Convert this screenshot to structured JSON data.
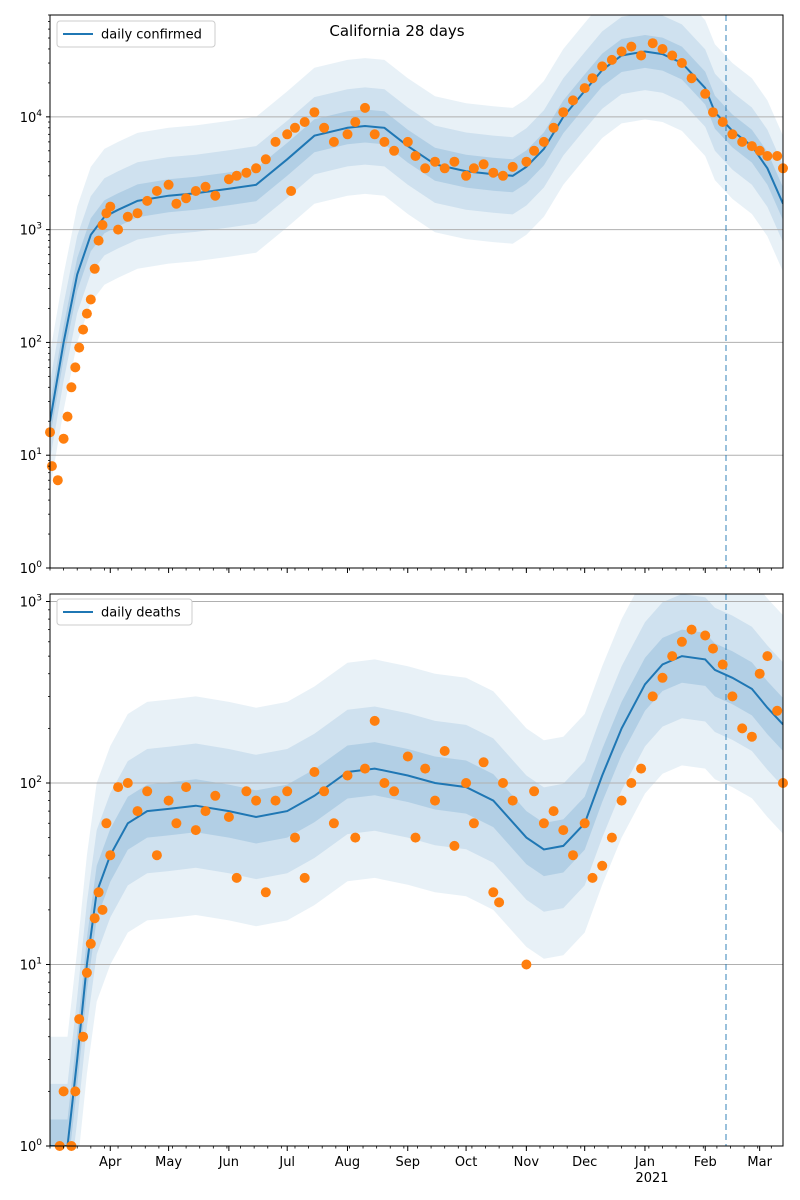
{
  "figure": {
    "title": "California 28 days"
  },
  "colors": {
    "model_line": "#1f77b4",
    "band": "#1f77b4",
    "observed": "#ff7f0e",
    "grid": "#b0b0b0",
    "vline": "#1f77b4"
  },
  "chart_data": [
    {
      "type": "line",
      "title": "California 28 days",
      "legend": {
        "label": "daily confirmed",
        "placement": "top-left"
      },
      "yscale": "log",
      "ylim": [
        1,
        80000
      ],
      "y_ticks": [
        1,
        10,
        100,
        1000,
        10000
      ],
      "y_tick_labels": [
        [
          "10",
          "0"
        ],
        [
          "10",
          "1"
        ],
        [
          "10",
          "2"
        ],
        [
          "10",
          "3"
        ],
        [
          "10",
          "4"
        ]
      ],
      "xlim": [
        "2020-03-01",
        "2021-03-13"
      ],
      "grid": "horizontal",
      "vertical_marker_date": "2021-02-06",
      "model": {
        "x": [
          "2020-03-01",
          "2020-03-08",
          "2020-03-15",
          "2020-03-22",
          "2020-03-29",
          "2020-04-05",
          "2020-04-15",
          "2020-05-01",
          "2020-05-15",
          "2020-06-01",
          "2020-06-15",
          "2020-07-01",
          "2020-07-15",
          "2020-08-01",
          "2020-08-10",
          "2020-08-20",
          "2020-09-01",
          "2020-09-15",
          "2020-10-01",
          "2020-10-15",
          "2020-10-25",
          "2020-11-01",
          "2020-11-10",
          "2020-11-20",
          "2020-12-01",
          "2020-12-10",
          "2020-12-20",
          "2021-01-01",
          "2021-01-10",
          "2021-01-20",
          "2021-02-01",
          "2021-02-06",
          "2021-02-15",
          "2021-02-25",
          "2021-03-05",
          "2021-03-13"
        ],
        "y": [
          20,
          100,
          400,
          900,
          1300,
          1500,
          1800,
          2000,
          2100,
          2300,
          2500,
          4200,
          6800,
          8000,
          8300,
          8000,
          5500,
          3800,
          3300,
          3100,
          3000,
          3600,
          5200,
          10000,
          17000,
          26000,
          35000,
          38000,
          36000,
          30000,
          18000,
          11000,
          7500,
          5500,
          3500,
          1700
        ]
      },
      "observed": {
        "x": [
          "2020-03-01",
          "2020-03-02",
          "2020-03-05",
          "2020-03-08",
          "2020-03-10",
          "2020-03-12",
          "2020-03-14",
          "2020-03-16",
          "2020-03-18",
          "2020-03-20",
          "2020-03-22",
          "2020-03-24",
          "2020-03-26",
          "2020-03-28",
          "2020-03-30",
          "2020-04-01",
          "2020-04-05",
          "2020-04-10",
          "2020-04-15",
          "2020-04-20",
          "2020-04-25",
          "2020-05-01",
          "2020-05-05",
          "2020-05-10",
          "2020-05-15",
          "2020-05-20",
          "2020-05-25",
          "2020-06-01",
          "2020-06-05",
          "2020-06-10",
          "2020-06-15",
          "2020-06-20",
          "2020-06-25",
          "2020-07-01",
          "2020-07-03",
          "2020-07-05",
          "2020-07-10",
          "2020-07-15",
          "2020-07-20",
          "2020-07-25",
          "2020-08-01",
          "2020-08-05",
          "2020-08-10",
          "2020-08-15",
          "2020-08-20",
          "2020-08-25",
          "2020-09-01",
          "2020-09-05",
          "2020-09-10",
          "2020-09-15",
          "2020-09-20",
          "2020-09-25",
          "2020-10-01",
          "2020-10-05",
          "2020-10-10",
          "2020-10-15",
          "2020-10-20",
          "2020-10-25",
          "2020-11-01",
          "2020-11-05",
          "2020-11-10",
          "2020-11-15",
          "2020-11-20",
          "2020-11-25",
          "2020-12-01",
          "2020-12-05",
          "2020-12-10",
          "2020-12-15",
          "2020-12-20",
          "2020-12-25",
          "2020-12-30",
          "2021-01-05",
          "2021-01-10",
          "2021-01-15",
          "2021-01-20",
          "2021-01-25",
          "2021-02-01",
          "2021-02-05",
          "2021-02-10",
          "2021-02-15",
          "2021-02-20",
          "2021-02-25",
          "2021-03-01",
          "2021-03-05",
          "2021-03-10",
          "2021-03-13"
        ],
        "y": [
          16,
          8,
          6,
          14,
          22,
          40,
          60,
          90,
          130,
          180,
          240,
          450,
          800,
          1100,
          1400,
          1600,
          1000,
          1300,
          1400,
          1800,
          2200,
          2500,
          1700,
          1900,
          2200,
          2400,
          2000,
          2800,
          3000,
          3200,
          3500,
          4200,
          6000,
          7000,
          2200,
          8000,
          9000,
          11000,
          8000,
          6000,
          7000,
          9000,
          12000,
          7000,
          6000,
          5000,
          6000,
          4500,
          3500,
          4000,
          3500,
          4000,
          3000,
          3500,
          3800,
          3200,
          3000,
          3600,
          4000,
          5000,
          6000,
          8000,
          11000,
          14000,
          18000,
          22000,
          28000,
          32000,
          38000,
          42000,
          35000,
          45000,
          40000,
          35000,
          30000,
          22000,
          16000,
          11000,
          9000,
          7000,
          6000,
          5500,
          5000,
          4500,
          4500,
          3500
        ]
      }
    },
    {
      "type": "line",
      "legend": {
        "label": "daily deaths",
        "placement": "top-left"
      },
      "yscale": "log",
      "ylim": [
        1,
        1100
      ],
      "y_ticks": [
        1,
        10,
        100,
        1000
      ],
      "y_tick_labels": [
        [
          "10",
          "0"
        ],
        [
          "10",
          "1"
        ],
        [
          "10",
          "2"
        ],
        [
          "10",
          "3"
        ]
      ],
      "xlim": [
        "2020-03-01",
        "2021-03-13"
      ],
      "x_tick_labels": [
        "Apr",
        "May",
        "Jun",
        "Jul",
        "Aug",
        "Sep",
        "Oct",
        "Nov",
        "Dec",
        "Jan",
        "Feb",
        "Mar"
      ],
      "x_tick_dates": [
        "2020-04-01",
        "2020-05-01",
        "2020-06-01",
        "2020-07-01",
        "2020-08-01",
        "2020-09-01",
        "2020-10-01",
        "2020-11-01",
        "2020-12-01",
        "2021-01-01",
        "2021-02-01",
        "2021-03-01"
      ],
      "x_year_label": "2021",
      "grid": "horizontal",
      "vertical_marker_date": "2021-02-06",
      "model": {
        "x": [
          "2020-03-01",
          "2020-03-06",
          "2020-03-10",
          "2020-03-15",
          "2020-03-20",
          "2020-03-25",
          "2020-04-01",
          "2020-04-10",
          "2020-04-20",
          "2020-05-01",
          "2020-05-15",
          "2020-06-01",
          "2020-06-15",
          "2020-07-01",
          "2020-07-15",
          "2020-08-01",
          "2020-08-15",
          "2020-09-01",
          "2020-09-15",
          "2020-10-01",
          "2020-10-15",
          "2020-11-01",
          "2020-11-10",
          "2020-11-20",
          "2020-12-01",
          "2020-12-10",
          "2020-12-20",
          "2021-01-01",
          "2021-01-10",
          "2021-01-20",
          "2021-02-01",
          "2021-02-06",
          "2021-02-15",
          "2021-02-25",
          "2021-03-05",
          "2021-03-13"
        ],
        "y": [
          1,
          1,
          1,
          3,
          10,
          25,
          40,
          60,
          70,
          72,
          75,
          70,
          65,
          70,
          85,
          115,
          120,
          110,
          100,
          95,
          80,
          50,
          43,
          45,
          60,
          110,
          200,
          350,
          450,
          500,
          480,
          420,
          380,
          330,
          260,
          210
        ]
      },
      "observed": {
        "x": [
          "2020-03-06",
          "2020-03-08",
          "2020-03-12",
          "2020-03-14",
          "2020-03-16",
          "2020-03-18",
          "2020-03-20",
          "2020-03-22",
          "2020-03-24",
          "2020-03-26",
          "2020-03-28",
          "2020-03-30",
          "2020-04-01",
          "2020-04-05",
          "2020-04-10",
          "2020-04-15",
          "2020-04-20",
          "2020-04-25",
          "2020-05-01",
          "2020-05-05",
          "2020-05-10",
          "2020-05-15",
          "2020-05-20",
          "2020-05-25",
          "2020-06-01",
          "2020-06-05",
          "2020-06-10",
          "2020-06-15",
          "2020-06-20",
          "2020-06-25",
          "2020-07-01",
          "2020-07-05",
          "2020-07-10",
          "2020-07-15",
          "2020-07-20",
          "2020-07-25",
          "2020-08-01",
          "2020-08-05",
          "2020-08-10",
          "2020-08-15",
          "2020-08-20",
          "2020-08-25",
          "2020-09-01",
          "2020-09-05",
          "2020-09-10",
          "2020-09-15",
          "2020-09-20",
          "2020-09-25",
          "2020-10-01",
          "2020-10-05",
          "2020-10-10",
          "2020-10-15",
          "2020-10-18",
          "2020-10-20",
          "2020-10-25",
          "2020-11-01",
          "2020-11-05",
          "2020-11-10",
          "2020-11-15",
          "2020-11-20",
          "2020-11-25",
          "2020-12-01",
          "2020-12-05",
          "2020-12-10",
          "2020-12-15",
          "2020-12-20",
          "2020-12-25",
          "2020-12-30",
          "2021-01-05",
          "2021-01-10",
          "2021-01-15",
          "2021-01-20",
          "2021-01-25",
          "2021-02-01",
          "2021-02-05",
          "2021-02-10",
          "2021-02-15",
          "2021-02-20",
          "2021-02-25",
          "2021-03-01",
          "2021-03-05",
          "2021-03-10",
          "2021-03-13"
        ],
        "y": [
          1,
          2,
          1,
          2,
          5,
          4,
          9,
          13,
          18,
          25,
          20,
          60,
          40,
          95,
          100,
          70,
          90,
          40,
          80,
          60,
          95,
          55,
          70,
          85,
          65,
          30,
          90,
          80,
          25,
          80,
          90,
          50,
          30,
          115,
          90,
          60,
          110,
          50,
          120,
          220,
          100,
          90,
          140,
          50,
          120,
          80,
          150,
          45,
          100,
          60,
          130,
          25,
          22,
          100,
          80,
          10,
          90,
          60,
          70,
          55,
          40,
          60,
          30,
          35,
          50,
          80,
          100,
          120,
          300,
          380,
          500,
          600,
          700,
          650,
          550,
          450,
          300,
          200,
          180,
          400,
          500,
          250,
          100
        ]
      }
    }
  ]
}
